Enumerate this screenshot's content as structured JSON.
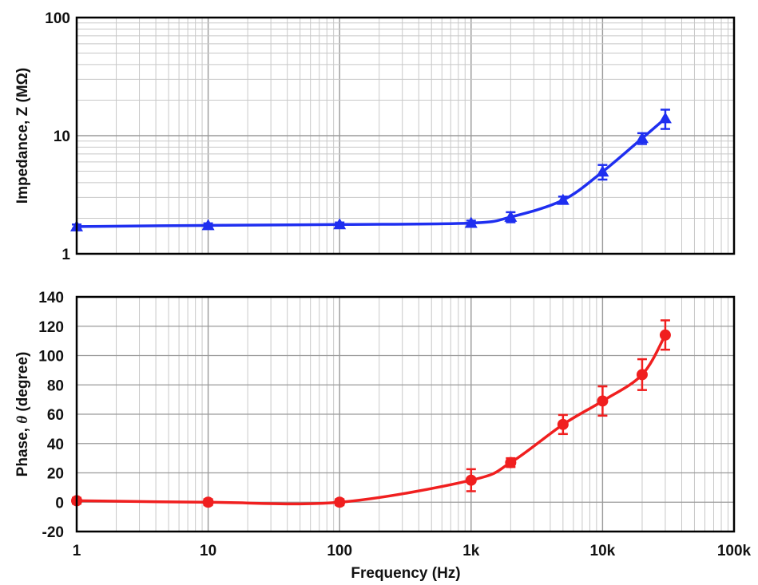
{
  "chart_data": [
    {
      "type": "line",
      "ylabel": "Impedance, Z (MΩ)",
      "xscale": "log",
      "yscale": "log",
      "xlim": [
        1,
        100000
      ],
      "ylim": [
        1,
        100
      ],
      "grid": true,
      "x_tick_labels": [],
      "y_tick_labels": [
        "1",
        "10",
        "100"
      ],
      "y_ticks": [
        1,
        10,
        100
      ],
      "marker": "triangle",
      "series": [
        {
          "color": "#1f2ff0",
          "x": [
            1,
            10,
            100,
            1000,
            2000,
            5000,
            10000,
            20000,
            30000
          ],
          "y": [
            1.7,
            1.74,
            1.77,
            1.82,
            2.05,
            2.85,
            4.95,
            9.5,
            14.0
          ],
          "error": [
            0.07,
            0.07,
            0.07,
            0.09,
            0.2,
            0.2,
            0.7,
            1.0,
            2.6
          ]
        }
      ]
    },
    {
      "type": "line",
      "xlabel": "Frequency (Hz)",
      "ylabel_text": "Phase, ",
      "ylabel_symbol": "θ",
      "ylabel_unit": " (degree)",
      "xscale": "log",
      "xlim": [
        1,
        100000
      ],
      "ylim": [
        -20,
        140
      ],
      "grid": true,
      "x_tick_labels": [
        "1",
        "10",
        "100",
        "1k",
        "10k",
        "100k"
      ],
      "x_ticks": [
        1,
        10,
        100,
        1000,
        10000,
        100000
      ],
      "y_tick_labels": [
        "-20",
        "0",
        "20",
        "40",
        "60",
        "80",
        "100",
        "120",
        "140"
      ],
      "y_ticks": [
        -20,
        0,
        20,
        40,
        60,
        80,
        100,
        120,
        140
      ],
      "marker": "circle",
      "series": [
        {
          "color": "#f01f1f",
          "x": [
            1,
            10,
            100,
            1000,
            2000,
            5000,
            10000,
            20000,
            30000
          ],
          "y": [
            1,
            0,
            0,
            15,
            27,
            53,
            69,
            87,
            114
          ],
          "error": [
            2,
            2,
            2,
            7.5,
            3,
            6.5,
            10,
            10.5,
            10
          ]
        }
      ]
    }
  ]
}
